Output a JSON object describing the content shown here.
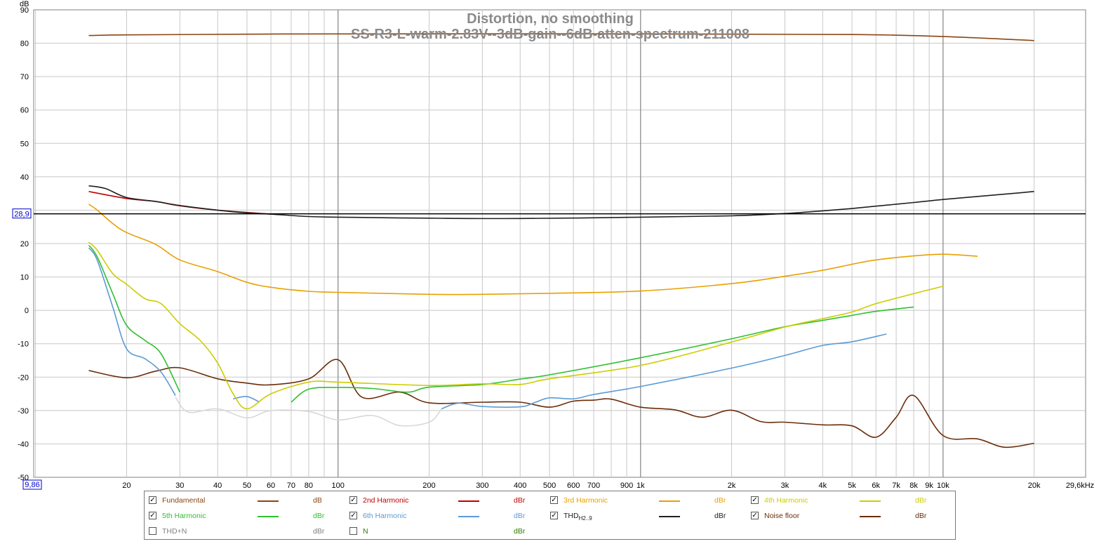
{
  "chart_data": {
    "type": "line",
    "title": "Distortion, no smoothing",
    "subtitle": "SS-R3-L-warm-2.83V--3dB-gain--6dB-atten-spectrum-211008",
    "ylabel": "dB",
    "xunit": "Hz",
    "xscale": "log",
    "xlim": [
      9.86,
      29600
    ],
    "ylim": [
      -50,
      90
    ],
    "cursor": {
      "x_label": "9,86",
      "y_label": "28,9",
      "y": 28.9
    },
    "x_ticks": [
      {
        "v": 20,
        "label": "20"
      },
      {
        "v": 30,
        "label": "30"
      },
      {
        "v": 40,
        "label": "40"
      },
      {
        "v": 50,
        "label": "50"
      },
      {
        "v": 60,
        "label": "60"
      },
      {
        "v": 70,
        "label": "70"
      },
      {
        "v": 80,
        "label": "80"
      },
      {
        "v": 100,
        "label": "100"
      },
      {
        "v": 200,
        "label": "200"
      },
      {
        "v": 300,
        "label": "300"
      },
      {
        "v": 400,
        "label": "400"
      },
      {
        "v": 500,
        "label": "500"
      },
      {
        "v": 600,
        "label": "600"
      },
      {
        "v": 700,
        "label": "700"
      },
      {
        "v": 900,
        "label": "900"
      },
      {
        "v": 1000,
        "label": "1k"
      },
      {
        "v": 2000,
        "label": "2k"
      },
      {
        "v": 3000,
        "label": "3k"
      },
      {
        "v": 4000,
        "label": "4k"
      },
      {
        "v": 5000,
        "label": "5k"
      },
      {
        "v": 6000,
        "label": "6k"
      },
      {
        "v": 7000,
        "label": "7k"
      },
      {
        "v": 8000,
        "label": "8k"
      },
      {
        "v": 9000,
        "label": "9k"
      },
      {
        "v": 10000,
        "label": "10k"
      },
      {
        "v": 20000,
        "label": "20k"
      },
      {
        "v": 29600,
        "label": "29,6kHz"
      }
    ],
    "y_ticks": [
      90,
      80,
      70,
      60,
      50,
      40,
      20,
      10,
      0,
      -10,
      -20,
      -30,
      -40,
      -50
    ],
    "series": [
      {
        "name": "Fundamental",
        "unit": "dB",
        "color": "#8b4513",
        "x": [
          15,
          20,
          50,
          100,
          1000,
          5000,
          10000,
          20000
        ],
        "y": [
          82.3,
          82.5,
          82.7,
          82.8,
          82.8,
          82.6,
          82.0,
          80.8
        ]
      },
      {
        "name": "2nd Harmonic",
        "unit": "dBr",
        "color": "#c00000",
        "x": [
          15,
          20,
          25,
          30,
          40,
          60
        ],
        "y": [
          35.6,
          33.5,
          32.6,
          31.3,
          30.0,
          28.8
        ]
      },
      {
        "name": "THD H2..9",
        "unit": "dBr",
        "color": "#202020",
        "x": [
          15,
          17,
          20,
          25,
          30,
          40,
          50,
          60,
          80,
          100,
          200,
          400,
          1000,
          2000,
          3000,
          4000,
          5000,
          6000,
          8000,
          10000,
          13000,
          17000,
          20000
        ],
        "y": [
          37.3,
          36.5,
          33.8,
          32.6,
          31.4,
          30.0,
          29.2,
          28.8,
          28.1,
          27.9,
          27.6,
          27.5,
          27.9,
          28.3,
          29.0,
          29.8,
          30.5,
          31.2,
          32.3,
          33.2,
          34.1,
          35.0,
          35.6
        ]
      },
      {
        "name": "3rd Harmonic",
        "unit": "dBr",
        "color": "#e8a000",
        "x": [
          15,
          16,
          18,
          20,
          25,
          30,
          40,
          50,
          60,
          80,
          100,
          200,
          300,
          500,
          1000,
          2000,
          3000,
          4000,
          5000,
          6000,
          8000,
          10000,
          13000
        ],
        "y": [
          31.8,
          30,
          26,
          23.3,
          19.7,
          15.1,
          11.6,
          8.4,
          6.9,
          5.7,
          5.4,
          4.8,
          4.8,
          5.1,
          5.8,
          8,
          10.2,
          12,
          13.8,
          15.1,
          16.3,
          16.8,
          16.2
        ]
      },
      {
        "name": "4th Harmonic",
        "unit": "dBr",
        "color": "#cccc00",
        "x": [
          15,
          16,
          18,
          20,
          23,
          26,
          30,
          35,
          40,
          45,
          50,
          60,
          80,
          100,
          200,
          300,
          400,
          500,
          1000,
          2000,
          3000,
          4000,
          5000,
          6000,
          8000,
          10000
        ],
        "y": [
          20.4,
          18,
          11,
          7.8,
          3.5,
          2,
          -4.0,
          -9,
          -15.8,
          -25,
          -29.5,
          -25,
          -21.5,
          -21.5,
          -22.5,
          -22.0,
          -22.2,
          -20.5,
          -16.5,
          -9.5,
          -5,
          -2.5,
          -0.5,
          2,
          5,
          7.2
        ]
      },
      {
        "name": "5th Harmonic",
        "unit": "dBr",
        "color": "#30c030",
        "x": [
          15,
          16,
          18,
          20,
          23,
          26,
          30
        ],
        "y": [
          19.5,
          16,
          5,
          -4.5,
          -9,
          -13,
          -24.5
        ]
      },
      {
        "name": "5th Harmonic (cont.)",
        "unit": "dBr",
        "color": "#30c030",
        "x": [
          70,
          80,
          100,
          130,
          170,
          200,
          300,
          400,
          500,
          1000,
          2000,
          3000,
          4000,
          5000,
          6000,
          8000
        ],
        "y": [
          -27.5,
          -23.6,
          -23.1,
          -23.4,
          -24.5,
          -23.0,
          -22.2,
          -20.6,
          -19.3,
          -14.2,
          -8.5,
          -4.9,
          -3.0,
          -1.5,
          -0.3,
          1.0
        ]
      },
      {
        "name": "6th Harmonic",
        "unit": "dBr",
        "color": "#5b9bd5",
        "x": [
          15,
          16,
          18,
          20,
          23,
          26,
          29
        ],
        "y": [
          18.7,
          15,
          1,
          -11.5,
          -14.5,
          -18.5,
          -25.5
        ]
      },
      {
        "name": "6th Harmonic (cont.)",
        "unit": "dBr",
        "color": "#5b9bd5",
        "x": [
          45,
          50,
          55
        ],
        "y": [
          -26.5,
          -25.8,
          -27.5
        ]
      },
      {
        "name": "6th Harmonic (cont. 2)",
        "unit": "dBr",
        "color": "#5b9bd5",
        "x": [
          220,
          250,
          300,
          400,
          450,
          500,
          600,
          700,
          1000,
          2000,
          3000,
          4000,
          5000,
          6500
        ],
        "y": [
          -29.5,
          -27.8,
          -28.8,
          -28.9,
          -27.5,
          -26.2,
          -26.5,
          -25.2,
          -22.8,
          -17.3,
          -13.5,
          -10.5,
          -9.4,
          -7.1
        ]
      },
      {
        "name": "6th Harmonic noise",
        "unit": "dBr",
        "color": "#d8d8d8",
        "x": [
          29,
          32,
          40,
          50,
          60,
          80,
          100,
          130,
          160,
          200,
          220
        ],
        "y": [
          -26,
          -30.5,
          -29.5,
          -32.2,
          -30.0,
          -30.3,
          -32.8,
          -31.5,
          -34.5,
          -33.5,
          -29.5
        ]
      },
      {
        "name": "Noise floor",
        "unit": "dBr",
        "color": "#6b2c0a",
        "x": [
          15,
          20,
          25,
          30,
          40,
          50,
          60,
          80,
          100,
          120,
          160,
          200,
          300,
          400,
          500,
          600,
          700,
          800,
          1000,
          1300,
          1600,
          2000,
          2500,
          3000,
          4000,
          5000,
          6000,
          7000,
          8000,
          10000,
          13000,
          16000,
          20000
        ],
        "y": [
          -18,
          -20.2,
          -18.2,
          -17.2,
          -20.5,
          -21.8,
          -22.3,
          -20.5,
          -14.8,
          -26.0,
          -24.5,
          -27.7,
          -27.5,
          -27.5,
          -29.0,
          -27.2,
          -26.9,
          -26.6,
          -29.0,
          -29.8,
          -32.0,
          -29.9,
          -33.3,
          -33.5,
          -34.3,
          -34.6,
          -38.0,
          -32.0,
          -25.5,
          -37.5,
          -38.5,
          -41.0,
          -39.8
        ]
      }
    ]
  },
  "legend": [
    {
      "label": "Fundamental",
      "unit": "dB",
      "checked": true,
      "color": "#8b4513",
      "label_color": "#8b4513",
      "unit_color": "#8b4513"
    },
    {
      "label": "2nd Harmonic",
      "unit": "dBr",
      "checked": true,
      "color": "#c00000",
      "label_color": "#c00000",
      "unit_color": "#c00000"
    },
    {
      "label": "3rd Harmonic",
      "unit": "dBr",
      "checked": true,
      "color": "#e8a000",
      "label_color": "#e8a000",
      "unit_color": "#e8a000"
    },
    {
      "label": "4th Harmonic",
      "unit": "dBr",
      "checked": true,
      "color": "#cccc00",
      "label_color": "#cccc00",
      "unit_color": "#cccc00"
    },
    {
      "label": "5th Harmonic",
      "unit": "dBr",
      "checked": true,
      "color": "#30c030",
      "label_color": "#30c030",
      "unit_color": "#30c030"
    },
    {
      "label": "6th Harmonic",
      "unit": "dBr",
      "checked": true,
      "color": "#5b9bd5",
      "label_color": "#5b9bd5",
      "unit_color": "#5b9bd5"
    },
    {
      "label": "THD",
      "sub": "H2..9",
      "unit": "dBr",
      "checked": true,
      "color": "#202020",
      "label_color": "#202020",
      "unit_color": "#202020"
    },
    {
      "label": "Noise floor",
      "unit": "dBr",
      "checked": true,
      "color": "#6b2c0a",
      "label_color": "#6b2c0a",
      "unit_color": "#6b2c0a"
    },
    {
      "label": "THD+N",
      "unit": "dBr",
      "checked": false,
      "color": "",
      "label_color": "#808080",
      "unit_color": "#808080"
    },
    {
      "label": "N",
      "unit": "dBr",
      "checked": false,
      "color": "",
      "label_color": "#2e7d00",
      "unit_color": "#2e7d00"
    }
  ]
}
